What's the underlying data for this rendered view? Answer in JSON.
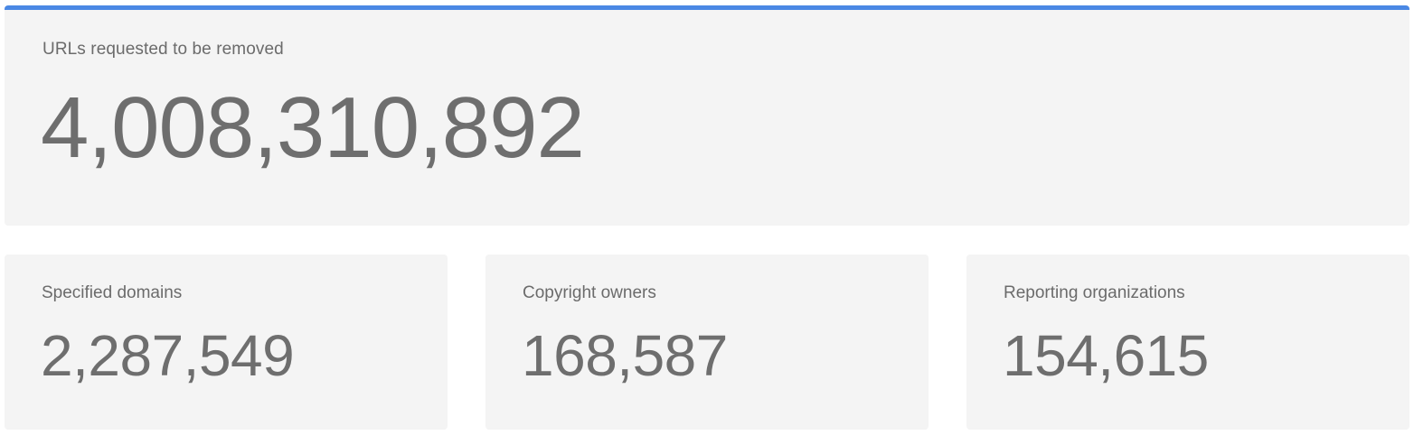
{
  "colors": {
    "accent": "#4a88e4",
    "card_background": "#f4f4f4",
    "text": "#6e6e6e"
  },
  "hero": {
    "label": "URLs requested to be removed",
    "value": "4,008,310,892"
  },
  "stats": [
    {
      "label": "Specified domains",
      "value": "2,287,549"
    },
    {
      "label": "Copyright owners",
      "value": "168,587"
    },
    {
      "label": "Reporting organizations",
      "value": "154,615"
    }
  ]
}
